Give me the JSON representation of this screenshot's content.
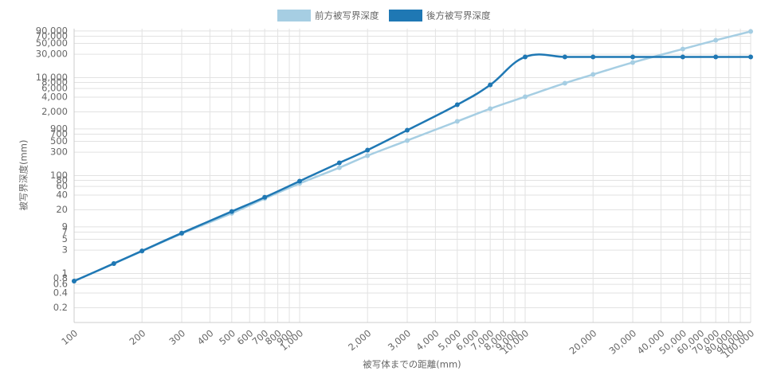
{
  "chart_data": {
    "type": "line",
    "x_label": "被写体までの距離(mm)",
    "y_label": "被写界深度(mm)",
    "x": [
      100,
      150,
      200,
      300,
      500,
      700,
      1000,
      1500,
      2000,
      3000,
      5000,
      7000,
      10000,
      15000,
      20000,
      30000,
      50000,
      70000,
      100000
    ],
    "series": [
      {
        "name": "前方被写界深度",
        "color": "#a6cee3",
        "values": [
          0.7,
          1.6,
          2.85,
          6.5,
          17,
          34,
          69,
          145,
          255,
          520,
          1280,
          2320,
          4080,
          7700,
          11600,
          20400,
          38400,
          58000,
          87700
        ]
      },
      {
        "name": "後方被写界深度",
        "color": "#1f78b4",
        "values": [
          0.7,
          1.6,
          2.9,
          6.7,
          18.5,
          36,
          77,
          182,
          331,
          845,
          2800,
          7100,
          26500,
          26500,
          26500,
          26500,
          26500,
          26500,
          26500
        ]
      }
    ],
    "x_log": true,
    "y_log": true,
    "grid": true,
    "legend": "top",
    "xlim": [
      100,
      100000
    ],
    "ylim": [
      0.1,
      100000
    ],
    "xticks": [
      100,
      200,
      300,
      400,
      500,
      600,
      700,
      800,
      900,
      {
        "value": 1000,
        "label": "1,000"
      },
      {
        "value": 2000,
        "label": "2,000"
      },
      {
        "value": 3000,
        "label": "3,000"
      },
      {
        "value": 4000,
        "label": "4,000"
      },
      {
        "value": 5000,
        "label": "5,000"
      },
      {
        "value": 6000,
        "label": "6,000"
      },
      {
        "value": 7000,
        "label": "7,000"
      },
      {
        "value": 8000,
        "label": "8,000"
      },
      {
        "value": 9000,
        "label": "9,000"
      },
      {
        "value": 10000,
        "label": "10,000"
      },
      {
        "value": 20000,
        "label": "20,000"
      },
      {
        "value": 30000,
        "label": "30,000"
      },
      {
        "value": 40000,
        "label": "40,000"
      },
      {
        "value": 50000,
        "label": "50,000"
      },
      {
        "value": 60000,
        "label": "60,000"
      },
      {
        "value": 70000,
        "label": "70,000"
      },
      {
        "value": 80000,
        "label": "80,000"
      },
      {
        "value": 90000,
        "label": "90,000"
      },
      {
        "value": 100000,
        "label": "100,000"
      }
    ],
    "yticks": [
      0.2,
      0.4,
      0.6,
      0.8,
      1,
      3,
      5,
      7,
      9,
      20,
      40,
      60,
      80,
      100,
      300,
      500,
      700,
      900,
      {
        "value": 2000,
        "label": "2,000"
      },
      {
        "value": 4000,
        "label": "4,000"
      },
      {
        "value": 6000,
        "label": "6,000"
      },
      {
        "value": 8000,
        "label": "8,000"
      },
      {
        "value": 10000,
        "label": "10,000"
      },
      {
        "value": 30000,
        "label": "30,000"
      },
      {
        "value": 50000,
        "label": "50,000"
      },
      {
        "value": 70000,
        "label": "70,000"
      },
      {
        "value": 90000,
        "label": "90,000"
      }
    ]
  }
}
